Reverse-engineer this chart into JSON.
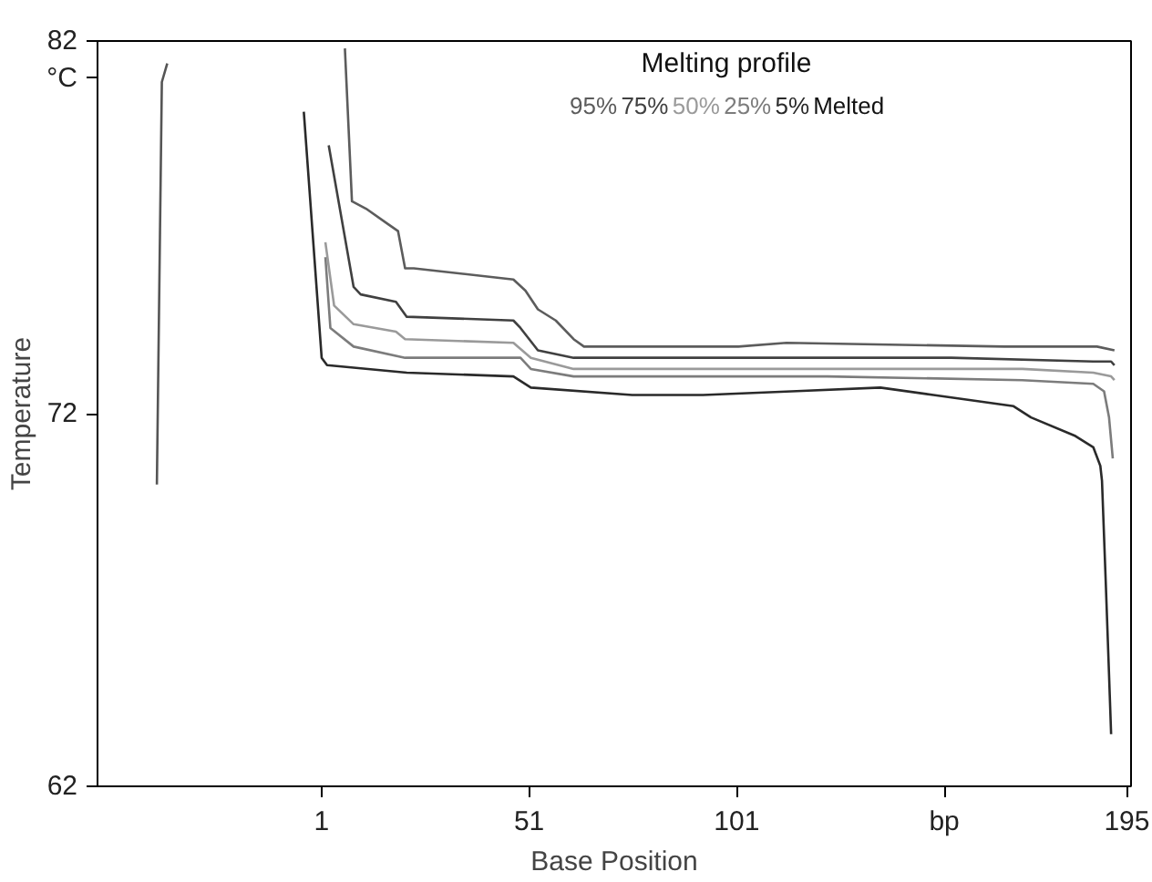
{
  "chart_data": {
    "type": "line",
    "legend_title": "Melting profile",
    "xlabel": "Base Position",
    "ylabel": "Temperature",
    "xlim": [
      -53,
      196
    ],
    "ylim": [
      62,
      82
    ],
    "xticks": [
      1,
      51,
      101,
      {
        "value": 151,
        "label": "bp"
      },
      195
    ],
    "yticks": [
      62,
      72,
      {
        "value": 81,
        "label": "°C"
      },
      82
    ],
    "grid": false,
    "legend": "top",
    "marker": "none",
    "line_style": "solid",
    "annotations": [
      "Melted"
    ],
    "series": [
      {
        "name": "95%",
        "color": "#5c5c5c",
        "x": [
          6.6,
          8.3,
          11.7,
          16.8,
          19.4,
          21.1,
          23.2,
          47.2,
          50.1,
          53.1,
          57.4,
          61.7,
          64.2,
          92.9,
          101.4,
          113,
          165.5,
          187.8,
          192
        ],
        "values": [
          81.8,
          77.7,
          77.5,
          77.1,
          76.9,
          75.9,
          75.9,
          75.6,
          75.3,
          74.8,
          74.5,
          74.0,
          73.8,
          73.8,
          73.8,
          73.9,
          73.8,
          73.8,
          73.7
        ]
      },
      {
        "name": "75%",
        "color": "#404040",
        "x": [
          2.7,
          8.7,
          10.4,
          18.9,
          21.5,
          47.2,
          48.9,
          53.1,
          61.7,
          92.9,
          122.8,
          152.7,
          186.9,
          191.2,
          192
        ],
        "values": [
          79.2,
          75.4,
          75.2,
          75.0,
          74.6,
          74.5,
          74.3,
          73.7,
          73.5,
          73.5,
          73.5,
          73.5,
          73.4,
          73.4,
          73.3
        ]
      },
      {
        "name": "50%",
        "color": "#9a9a9a",
        "x": [
          1.9,
          4,
          8.7,
          18.9,
          21.1,
          47.2,
          51.4,
          61.7,
          92.9,
          122.8,
          169.8,
          186.9,
          191.2,
          192
        ],
        "values": [
          76.6,
          74.9,
          74.4,
          74.2,
          74.0,
          73.9,
          73.5,
          73.2,
          73.2,
          73.2,
          73.2,
          73.1,
          73.0,
          72.9
        ]
      },
      {
        "name": "25%",
        "color": "#7c7c7c",
        "x": [
          1.9,
          3.1,
          8.7,
          21.1,
          48.9,
          51.4,
          61.7,
          92.9,
          122.8,
          169.8,
          186.9,
          189.5,
          190.7,
          191.6
        ],
        "values": [
          76.2,
          74.3,
          73.8,
          73.5,
          73.5,
          73.2,
          73.0,
          73.0,
          73.0,
          72.9,
          72.8,
          72.6,
          71.9,
          70.8
        ]
      },
      {
        "name": "5%",
        "color": "#2a2a2a",
        "x": [
          -3.3,
          1,
          2.3,
          21.5,
          47.2,
          51.4,
          75.8,
          92.9,
          114.2,
          135.6,
          148.4,
          167.7,
          171.9,
          182.6,
          186.9,
          188.6,
          189,
          189.9,
          190.7,
          191.2
        ],
        "values": [
          80.1,
          73.5,
          73.3,
          73.1,
          73.0,
          72.7,
          72.5,
          72.5,
          72.6,
          72.7,
          72.5,
          72.2,
          71.9,
          71.4,
          71.1,
          70.6,
          70.2,
          67.5,
          65.0,
          63.4
        ]
      },
      {
        "color": "#555555",
        "x": [
          -38.7,
          -37.5,
          -36.2
        ],
        "values": [
          70.1,
          80.9,
          81.4
        ]
      }
    ]
  }
}
